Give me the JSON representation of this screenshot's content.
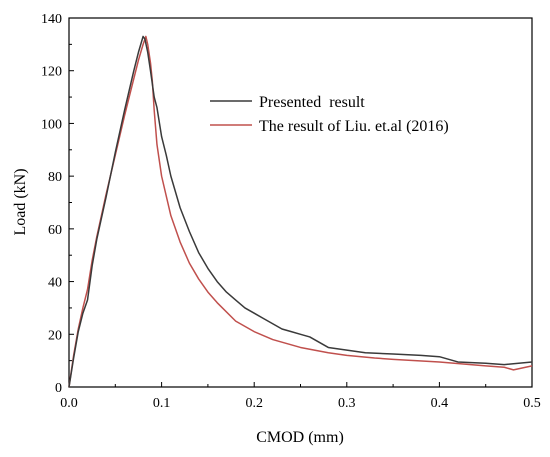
{
  "chart_data": {
    "type": "line",
    "xlabel": "CMOD (mm)",
    "ylabel": "Load (kN)",
    "xlim": [
      0,
      0.5
    ],
    "ylim": [
      0,
      140
    ],
    "xticks": [
      0.0,
      0.1,
      0.2,
      0.3,
      0.4,
      0.5
    ],
    "xtick_labels": [
      "0.0",
      "0.1",
      "0.2",
      "0.3",
      "0.4",
      "0.5"
    ],
    "yticks": [
      0,
      20,
      40,
      60,
      80,
      100,
      120,
      140
    ],
    "ytick_labels": [
      "0",
      "20",
      "40",
      "60",
      "80",
      "100",
      "120",
      "140"
    ],
    "grid": false,
    "legend_position": "top-right",
    "series": [
      {
        "name": "Presented  result",
        "color": "#3a3a3a",
        "x": [
          0,
          0.005,
          0.01,
          0.015,
          0.02,
          0.025,
          0.03,
          0.04,
          0.05,
          0.06,
          0.07,
          0.075,
          0.08,
          0.082,
          0.085,
          0.088,
          0.09,
          0.092,
          0.095,
          0.1,
          0.105,
          0.11,
          0.12,
          0.13,
          0.14,
          0.15,
          0.16,
          0.17,
          0.18,
          0.19,
          0.2,
          0.21,
          0.22,
          0.23,
          0.24,
          0.25,
          0.26,
          0.27,
          0.28,
          0.3,
          0.32,
          0.35,
          0.38,
          0.4,
          0.42,
          0.45,
          0.47,
          0.5
        ],
        "y": [
          0,
          11,
          21,
          28,
          33,
          46,
          56,
          72,
          89,
          105,
          120,
          127,
          133,
          132,
          127,
          120,
          115,
          110,
          106,
          95,
          88,
          80,
          68,
          59,
          51,
          45,
          40,
          36,
          33,
          30,
          28,
          26,
          24,
          22,
          21,
          20,
          19,
          17,
          15,
          14,
          13,
          12.5,
          12,
          11.5,
          9.5,
          9,
          8.5,
          9.5
        ]
      },
      {
        "name": "The result of Liu. et.al (2016)",
        "color": "#c0504d",
        "x": [
          0,
          0.005,
          0.01,
          0.015,
          0.02,
          0.025,
          0.03,
          0.04,
          0.05,
          0.06,
          0.07,
          0.075,
          0.08,
          0.083,
          0.085,
          0.088,
          0.09,
          0.092,
          0.095,
          0.1,
          0.11,
          0.12,
          0.13,
          0.14,
          0.15,
          0.16,
          0.18,
          0.2,
          0.22,
          0.25,
          0.28,
          0.3,
          0.33,
          0.35,
          0.4,
          0.45,
          0.47,
          0.48,
          0.5
        ],
        "y": [
          0,
          12,
          22,
          30,
          37,
          48,
          57,
          73,
          88,
          103,
          117,
          124,
          130,
          133,
          130,
          123,
          116,
          105,
          92,
          80,
          65,
          55,
          47,
          41,
          36,
          32,
          25,
          21,
          18,
          15,
          13,
          12,
          11,
          10.5,
          9.5,
          8,
          7.5,
          6.5,
          8
        ]
      }
    ]
  }
}
